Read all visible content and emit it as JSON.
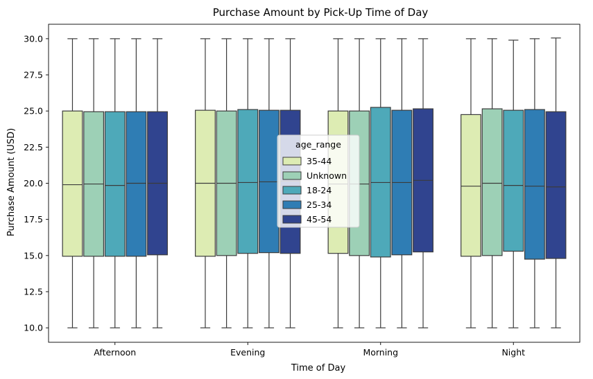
{
  "chart_data": {
    "type": "box",
    "title": "Purchase Amount by Pick-Up Time of Day",
    "xlabel": "Time of Day",
    "ylabel": "Purchase Amount (USD)",
    "ylim": [
      9.0,
      31.0
    ],
    "yticks": [
      "10.0",
      "12.5",
      "15.0",
      "17.5",
      "20.0",
      "22.5",
      "25.0",
      "27.5",
      "30.0"
    ],
    "categories": [
      "Afternoon",
      "Evening",
      "Morning",
      "Night"
    ],
    "legend": {
      "title": "age_range",
      "placement": "center"
    },
    "colors": {
      "35-44": "#ddecb3",
      "Unknown": "#9dd0b6",
      "18-24": "#4ea9b9",
      "25-34": "#2f7db4",
      "45-54": "#30448f"
    },
    "series": [
      {
        "name": "35-44",
        "boxes": [
          {
            "whislo": 10.0,
            "q1": 14.95,
            "med": 19.9,
            "q3": 25.0,
            "whishi": 30.0
          },
          {
            "whislo": 10.0,
            "q1": 14.95,
            "med": 20.0,
            "q3": 25.05,
            "whishi": 30.0
          },
          {
            "whislo": 10.0,
            "q1": 15.15,
            "med": 19.95,
            "q3": 25.0,
            "whishi": 30.0
          },
          {
            "whislo": 10.0,
            "q1": 14.95,
            "med": 19.8,
            "q3": 24.75,
            "whishi": 30.0
          }
        ]
      },
      {
        "name": "Unknown",
        "boxes": [
          {
            "whislo": 10.0,
            "q1": 14.95,
            "med": 19.95,
            "q3": 24.95,
            "whishi": 30.0
          },
          {
            "whislo": 10.0,
            "q1": 15.0,
            "med": 20.0,
            "q3": 25.0,
            "whishi": 30.0
          },
          {
            "whislo": 10.0,
            "q1": 15.0,
            "med": 19.95,
            "q3": 25.0,
            "whishi": 30.0
          },
          {
            "whislo": 10.0,
            "q1": 15.0,
            "med": 20.0,
            "q3": 25.15,
            "whishi": 30.0
          }
        ]
      },
      {
        "name": "18-24",
        "boxes": [
          {
            "whislo": 10.0,
            "q1": 14.95,
            "med": 19.85,
            "q3": 24.95,
            "whishi": 30.0
          },
          {
            "whislo": 10.0,
            "q1": 15.15,
            "med": 20.05,
            "q3": 25.1,
            "whishi": 30.0
          },
          {
            "whislo": 10.0,
            "q1": 14.9,
            "med": 20.05,
            "q3": 25.25,
            "whishi": 30.0
          },
          {
            "whislo": 10.0,
            "q1": 15.3,
            "med": 19.85,
            "q3": 25.05,
            "whishi": 29.9
          }
        ]
      },
      {
        "name": "25-34",
        "boxes": [
          {
            "whislo": 10.0,
            "q1": 14.95,
            "med": 20.0,
            "q3": 24.95,
            "whishi": 30.0
          },
          {
            "whislo": 10.0,
            "q1": 15.2,
            "med": 20.1,
            "q3": 25.05,
            "whishi": 30.0
          },
          {
            "whislo": 10.0,
            "q1": 15.05,
            "med": 20.05,
            "q3": 25.05,
            "whishi": 30.0
          },
          {
            "whislo": 10.0,
            "q1": 14.75,
            "med": 19.8,
            "q3": 25.1,
            "whishi": 30.0
          }
        ]
      },
      {
        "name": "45-54",
        "boxes": [
          {
            "whislo": 10.0,
            "q1": 15.05,
            "med": 20.0,
            "q3": 24.95,
            "whishi": 30.0
          },
          {
            "whislo": 10.0,
            "q1": 15.15,
            "med": 20.15,
            "q3": 25.05,
            "whishi": 30.0
          },
          {
            "whislo": 10.0,
            "q1": 15.25,
            "med": 20.2,
            "q3": 25.15,
            "whishi": 30.0
          },
          {
            "whislo": 10.0,
            "q1": 14.8,
            "med": 19.75,
            "q3": 24.95,
            "whishi": 30.05
          }
        ]
      }
    ]
  }
}
